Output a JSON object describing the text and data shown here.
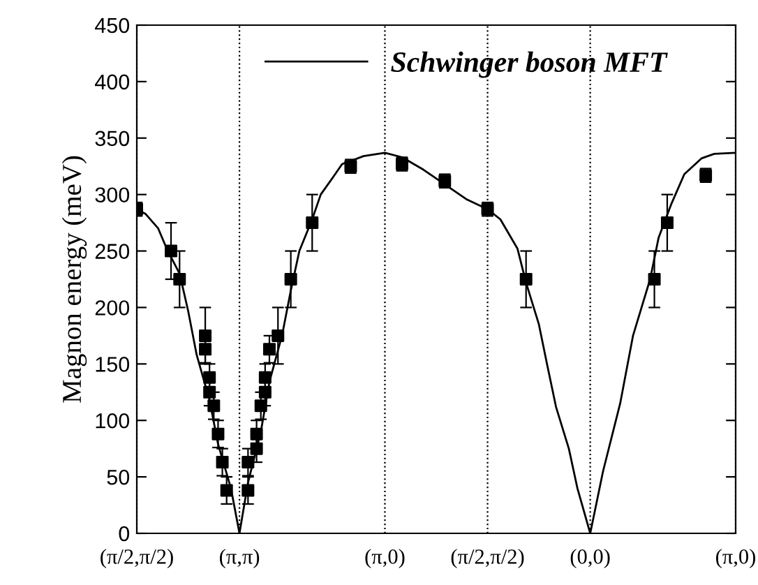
{
  "chart_data": {
    "type": "line",
    "ylabel": "Magnon energy (meV)",
    "categories": [
      "(π/2,π/2)",
      null,
      null,
      null,
      null,
      null,
      null,
      null,
      null,
      null,
      null,
      null,
      null,
      null,
      null,
      null,
      null,
      null,
      null,
      null,
      null,
      null,
      null,
      null,
      "(π,π)",
      null,
      null,
      null,
      null,
      null,
      null,
      null,
      null,
      null,
      null,
      null,
      null,
      null,
      null,
      null,
      null,
      null,
      null,
      null,
      null,
      null,
      null,
      null,
      null,
      null,
      null,
      null,
      null,
      null,
      null,
      null,
      null,
      null,
      "(π,0)",
      null,
      null,
      null,
      null,
      null,
      null,
      null,
      null,
      null,
      null,
      null,
      null,
      null,
      null,
      null,
      null,
      null,
      null,
      null,
      null,
      null,
      null,
      null,
      "(π/2,π/2)",
      null,
      null,
      null,
      null,
      null,
      null,
      null,
      null,
      null,
      null,
      null,
      null,
      null,
      null,
      null,
      null,
      null,
      null,
      null,
      null,
      null,
      null,
      null,
      "(0,0)",
      null,
      null,
      null,
      null,
      null,
      null,
      null,
      null,
      null,
      null,
      null,
      null,
      null,
      null,
      null,
      null,
      null,
      null,
      null,
      null,
      null,
      null,
      null,
      null,
      null,
      null,
      null,
      null,
      null,
      null,
      null,
      null,
      null,
      "(π,0)"
    ],
    "ylim": [
      0,
      450
    ],
    "yticks": [
      0,
      50,
      100,
      150,
      200,
      250,
      300,
      350,
      400,
      450
    ],
    "grid": "x",
    "legend": "top",
    "series": [
      {
        "name": "Schwinger boson MFT",
        "color": "#000000",
        "line_style": "solid",
        "marker": "none",
        "values": [
          287,
          null,
          283,
          null,
          null,
          270,
          null,
          252,
          null,
          null,
          230,
          null,
          197,
          null,
          158,
          null,
          null,
          118,
          null,
          79,
          null,
          null,
          40,
          null,
          0,
          null,
          45,
          null,
          null,
          90,
          null,
          134,
          null,
          null,
          176,
          null,
          215,
          null,
          250,
          null,
          null,
          278,
          null,
          300,
          null,
          null,
          316,
          null,
          327,
          null,
          null,
          null,
          null,
          334,
          null,
          null,
          null,
          null,
          337,
          null,
          null,
          null,
          333,
          null,
          null,
          null,
          null,
          322,
          null,
          null,
          null,
          null,
          309,
          null,
          null,
          null,
          null,
          296,
          null,
          null,
          null,
          null,
          287,
          null,
          null,
          278,
          null,
          null,
          null,
          252,
          null,
          222,
          null,
          null,
          185,
          null,
          148,
          null,
          112,
          null,
          null,
          75,
          null,
          40,
          null,
          null,
          0,
          null,
          null,
          55,
          null,
          null,
          null,
          115,
          null,
          null,
          175,
          null,
          null,
          null,
          225,
          null,
          262,
          null,
          null,
          292,
          null,
          null,
          318,
          null,
          null,
          null,
          332,
          null,
          null,
          336,
          null,
          null,
          null,
          null,
          337
        ]
      },
      {
        "type": "scatter",
        "color": "#000000",
        "marker": "square",
        "values": [
          287,
          null,
          null,
          null,
          null,
          null,
          null,
          null,
          250,
          null,
          225,
          null,
          null,
          null,
          null,
          null,
          175,
          125,
          113,
          88,
          63,
          38,
          null,
          null,
          null,
          null,
          38,
          null,
          75,
          113,
          125,
          163,
          null,
          175,
          null,
          null,
          225,
          null,
          null,
          null,
          null,
          275,
          null,
          null,
          null,
          null,
          null,
          null,
          null,
          null,
          325,
          null,
          null,
          null,
          null,
          null,
          null,
          null,
          null,
          null,
          null,
          null,
          327,
          null,
          null,
          null,
          null,
          null,
          null,
          null,
          null,
          null,
          312,
          null,
          null,
          null,
          null,
          null,
          null,
          null,
          null,
          null,
          287,
          null,
          null,
          null,
          null,
          null,
          null,
          null,
          null,
          225,
          null,
          null,
          null,
          null,
          null,
          null,
          null,
          null,
          null,
          null,
          null,
          null,
          null,
          null,
          null,
          null,
          null,
          null,
          null,
          null,
          null,
          null,
          null,
          null,
          null,
          null,
          null,
          null,
          null,
          225,
          null,
          null,
          275,
          null,
          null,
          null,
          null,
          null,
          null,
          null,
          null,
          317,
          null,
          null,
          null,
          null,
          null,
          null,
          null
        ],
        "errors": [
          6,
          null,
          null,
          null,
          null,
          null,
          null,
          null,
          25,
          null,
          25,
          null,
          null,
          null,
          null,
          null,
          25,
          12,
          12,
          12,
          12,
          12,
          null,
          null,
          null,
          null,
          12,
          null,
          12,
          12,
          12,
          12,
          null,
          25,
          null,
          null,
          25,
          null,
          null,
          null,
          null,
          25,
          null,
          null,
          null,
          null,
          null,
          null,
          null,
          null,
          6,
          null,
          null,
          null,
          null,
          null,
          null,
          null,
          null,
          null,
          null,
          null,
          6,
          null,
          null,
          null,
          null,
          null,
          null,
          null,
          null,
          null,
          6,
          null,
          null,
          null,
          null,
          null,
          null,
          null,
          null,
          null,
          6,
          null,
          null,
          null,
          null,
          null,
          null,
          null,
          null,
          25,
          null,
          null,
          null,
          null,
          null,
          null,
          null,
          null,
          null,
          null,
          null,
          null,
          null,
          null,
          null,
          null,
          null,
          null,
          null,
          null,
          null,
          null,
          null,
          null,
          null,
          null,
          null,
          null,
          null,
          25,
          null,
          null,
          25,
          null,
          null,
          null,
          null,
          null,
          null,
          null,
          null,
          6,
          null,
          null,
          null,
          null,
          null,
          null,
          null
        ]
      },
      {
        "type": "scatter",
        "color": "#000000",
        "marker": "square",
        "values": [
          null,
          null,
          null,
          null,
          null,
          null,
          null,
          null,
          null,
          null,
          null,
          null,
          null,
          null,
          null,
          null,
          163,
          138,
          null,
          null,
          null,
          null,
          null,
          null,
          null,
          null,
          63,
          null,
          88,
          null,
          138,
          null,
          null,
          null,
          null,
          null,
          null,
          null,
          null,
          null,
          null,
          null,
          null,
          null,
          null,
          null,
          null,
          null,
          null,
          null,
          null,
          null,
          null,
          null,
          null,
          null,
          null,
          null,
          null,
          null,
          null,
          null,
          null,
          null,
          null,
          null,
          null,
          null,
          null,
          null,
          null,
          null,
          null,
          null,
          null,
          null,
          null,
          null,
          null,
          null,
          null,
          null,
          null,
          null,
          null,
          null,
          null,
          null,
          null,
          null,
          null,
          null,
          null,
          null,
          null,
          null,
          null,
          null,
          null,
          null,
          null,
          null,
          null,
          null,
          null,
          null,
          null,
          null,
          null,
          null,
          null,
          null,
          null,
          null,
          null,
          null,
          null,
          null,
          null,
          null,
          null,
          null,
          null,
          null,
          null,
          null,
          null,
          null,
          null,
          null,
          null,
          null,
          null,
          null,
          null,
          null,
          null,
          null,
          null,
          null,
          null
        ],
        "errors": [
          null,
          null,
          null,
          null,
          null,
          null,
          null,
          null,
          null,
          null,
          null,
          null,
          null,
          null,
          null,
          null,
          12,
          12,
          null,
          null,
          null,
          null,
          null,
          null,
          null,
          null,
          12,
          null,
          12,
          null,
          12,
          null,
          null,
          null,
          null,
          null,
          null,
          null,
          null,
          null,
          null,
          null,
          null,
          null,
          null,
          null,
          null,
          null,
          null,
          null,
          null,
          null,
          null,
          null,
          null,
          null,
          null,
          null,
          null,
          null,
          null,
          null,
          null,
          null,
          null,
          null,
          null,
          null,
          null,
          null,
          null,
          null,
          null,
          null,
          null,
          null,
          null,
          null,
          null,
          null,
          null,
          null,
          null,
          null,
          null,
          null,
          null,
          null,
          null,
          null,
          null,
          null,
          null,
          null,
          null,
          null,
          null,
          null,
          null,
          null,
          null,
          null,
          null,
          null,
          null,
          null,
          null,
          null,
          null,
          null,
          null,
          null,
          null,
          null,
          null,
          null,
          null,
          null,
          null,
          null,
          null,
          null,
          null,
          null,
          null,
          null,
          null,
          null,
          null,
          null,
          null,
          null,
          null,
          null,
          null,
          null,
          null,
          null,
          null,
          null,
          null
        ]
      }
    ]
  }
}
